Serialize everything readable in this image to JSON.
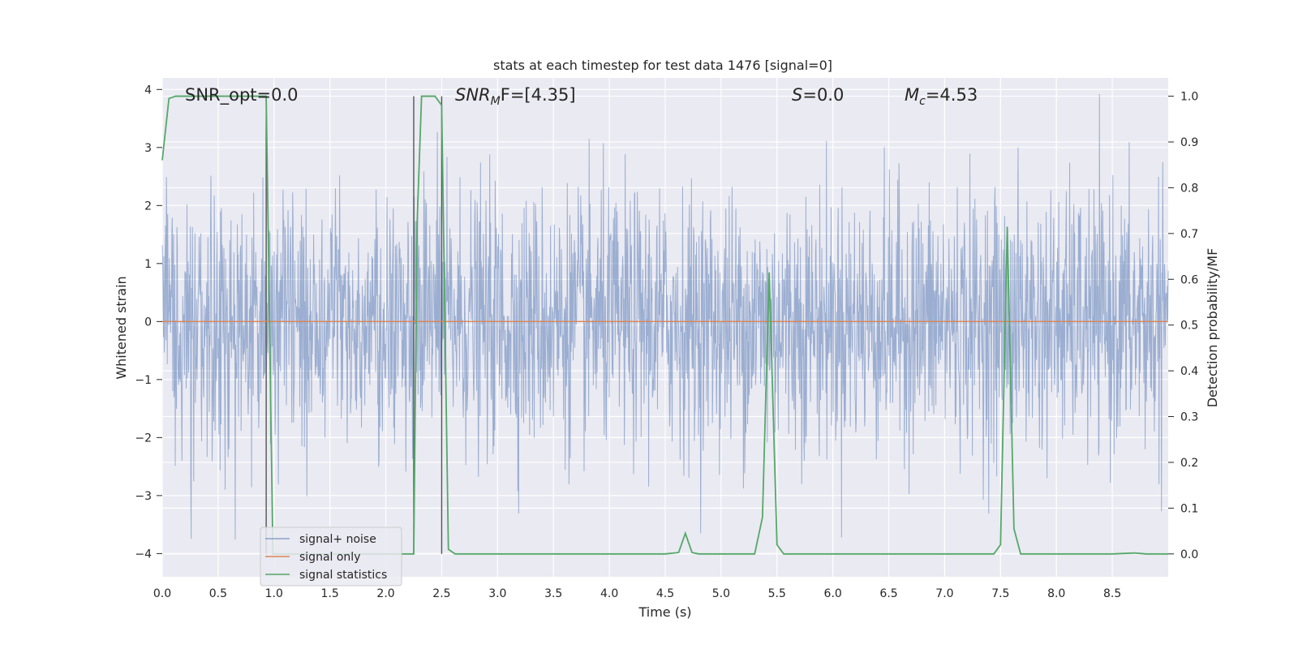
{
  "chart_data": {
    "type": "line",
    "title": "stats at each timestep for test data 1476 [signal=0]",
    "xlabel": "Time (s)",
    "ylabel": "Whitened strain",
    "y2label": "Detection probability/MF",
    "xlim": [
      0,
      9.0
    ],
    "ylim": [
      -4.4,
      4.2
    ],
    "y2lim": [
      -0.05,
      1.04
    ],
    "grid": true,
    "legend_position": "lower-left",
    "x_ticks": [
      "0.0",
      "0.5",
      "1.0",
      "1.5",
      "2.0",
      "2.5",
      "3.0",
      "3.5",
      "4.0",
      "4.5",
      "5.0",
      "5.5",
      "6.0",
      "6.5",
      "7.0",
      "7.5",
      "8.0",
      "8.5"
    ],
    "y_ticks": [
      "4",
      "3",
      "2",
      "1",
      "0",
      "−1",
      "−2",
      "−3",
      "−4"
    ],
    "y2_ticks": [
      "1.0",
      "0.9",
      "0.8",
      "0.7",
      "0.6",
      "0.5",
      "0.4",
      "0.3",
      "0.2",
      "0.1",
      "0.0"
    ],
    "annotations": {
      "snr_opt": "SNR_opt=0.0",
      "snr_mf_prefix": "SNR",
      "snr_mf_sub": "M",
      "snr_mf_suffix": "F=[4.35]",
      "s_var": "S",
      "s_val": "=0.0",
      "mc_var": "M",
      "mc_sub": "c",
      "mc_val": "=4.53"
    },
    "vertical_markers_x": [
      0.93,
      2.25,
      2.5
    ],
    "series": [
      {
        "name": "signal+ noise",
        "color": "#4c72b0",
        "description_values": "white-noise strain, approx. uniform amplitude, range -4.0 to 4.0"
      },
      {
        "name": "signal only",
        "color": "#dd8452",
        "x": [
          0,
          9.0
        ],
        "y": [
          0,
          0
        ]
      },
      {
        "name": "signal statistics",
        "color": "#55a868",
        "axis": "right",
        "x": [
          0.0,
          0.06,
          0.12,
          0.18,
          0.24,
          0.3,
          0.4,
          0.5,
          0.6,
          0.7,
          0.8,
          0.9,
          0.93,
          0.99,
          1.05,
          1.2,
          1.5,
          1.8,
          2.0,
          2.2,
          2.25,
          2.28,
          2.32,
          2.38,
          2.44,
          2.5,
          2.56,
          2.62,
          2.7,
          3.0,
          3.5,
          4.0,
          4.5,
          4.62,
          4.68,
          4.74,
          4.8,
          5.0,
          5.2,
          5.3,
          5.37,
          5.43,
          5.5,
          5.56,
          5.62,
          6.0,
          6.5,
          7.0,
          7.44,
          7.5,
          7.56,
          7.62,
          7.68,
          7.8,
          8.0,
          8.5,
          8.7,
          8.8,
          8.9,
          9.0
        ],
        "y": [
          0.86,
          0.995,
          1.0,
          1.0,
          1.0,
          1.0,
          1.0,
          1.0,
          1.0,
          1.0,
          1.0,
          1.0,
          1.0,
          0.0,
          0.0,
          0.0,
          0.0,
          0.0,
          0.0,
          0.0,
          0.0,
          0.72,
          1.0,
          1.0,
          1.0,
          0.98,
          0.01,
          0.0,
          0.0,
          0.0,
          0.0,
          0.0,
          0.0,
          0.003,
          0.045,
          0.003,
          0.0,
          0.0,
          0.0,
          0.0,
          0.08,
          0.615,
          0.02,
          0.0,
          0.0,
          0.0,
          0.0,
          0.0,
          0.0,
          0.02,
          0.715,
          0.055,
          0.0,
          0.0,
          0.0,
          0.0,
          0.002,
          0.0,
          0.0,
          0.0
        ]
      }
    ]
  }
}
